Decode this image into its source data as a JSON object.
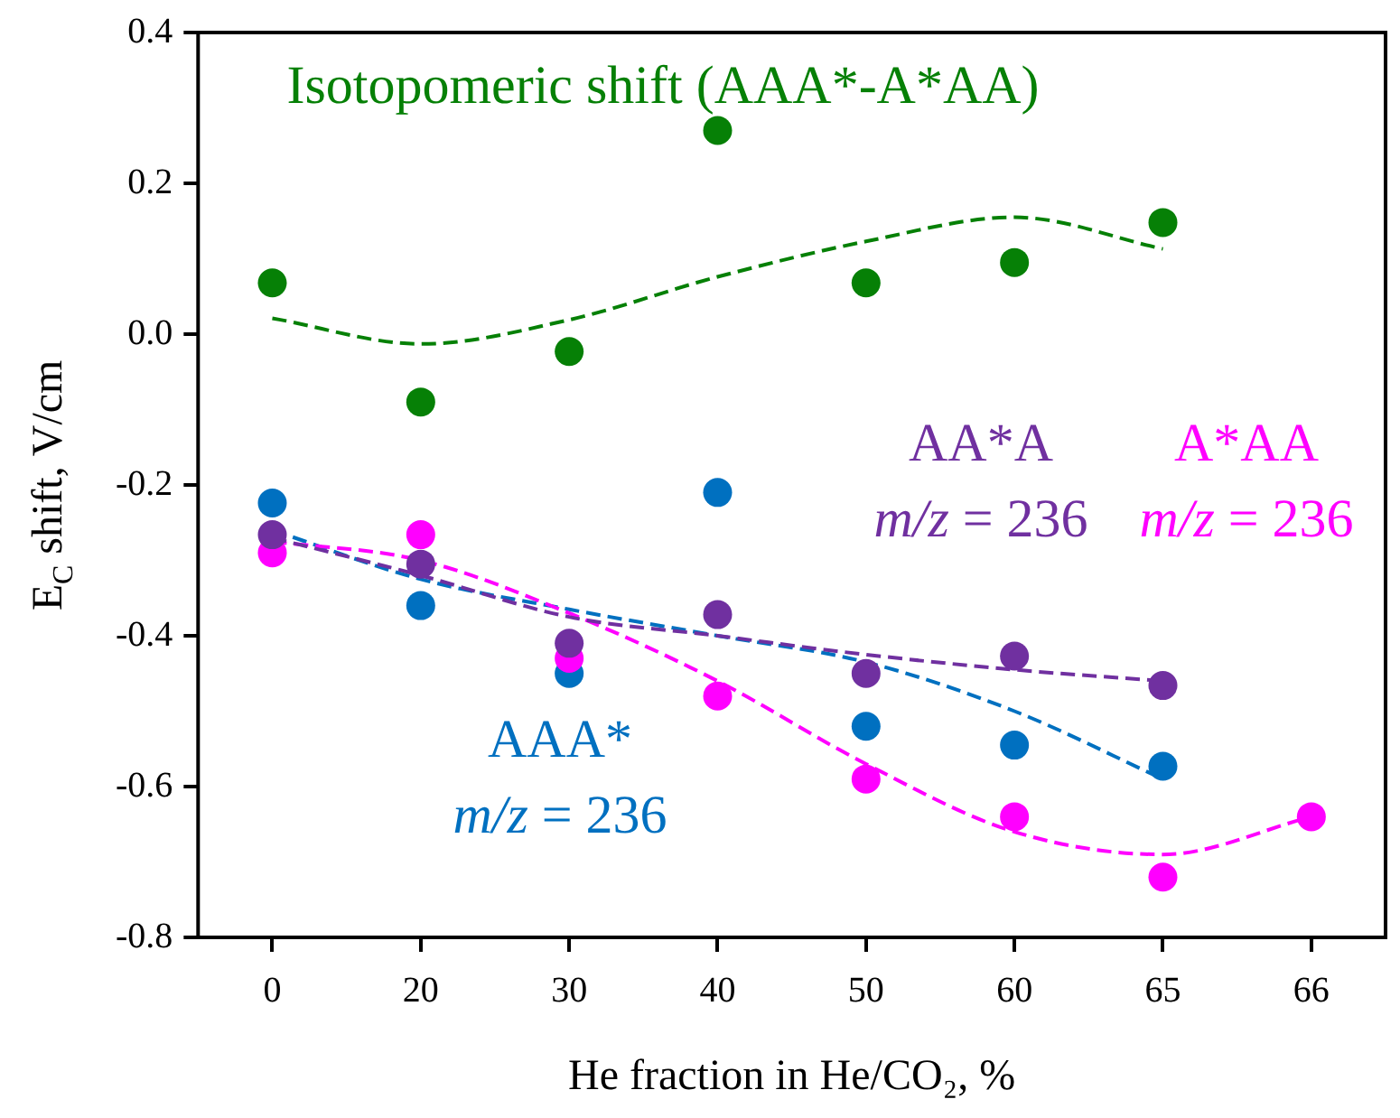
{
  "chart_data": {
    "type": "line",
    "xlabel": "He fraction in He/CO₂, %",
    "ylabel": "E$_{C}$ shift, V/cm",
    "categories": [
      "0",
      "20",
      "30",
      "40",
      "50",
      "60",
      "65",
      "66"
    ],
    "ylim": [
      -0.8,
      0.4
    ],
    "yticks": [
      {
        "value": -0.8,
        "label": "-0.8"
      },
      {
        "value": -0.6,
        "label": "-0.6"
      },
      {
        "value": -0.4,
        "label": "-0.4"
      },
      {
        "value": -0.2,
        "label": "-0.2"
      },
      {
        "value": 0,
        "label": "0.0"
      },
      0.2,
      0.4
    ],
    "grid": false,
    "legend": false,
    "series": [
      {
        "name": "Isotopomeric shift (AAA*-A*AA)",
        "type": "scatter",
        "marker": "circle",
        "color": "#068006",
        "values": [
          0.068,
          -0.09,
          -0.023,
          0.27,
          0.068,
          0.095,
          0.148,
          null
        ]
      },
      {
        "type": "line",
        "line_style": "dashed",
        "marker": "none",
        "color": "#068006",
        "values": [
          0.021,
          -0.013,
          0.019,
          0.076,
          0.123,
          0.155,
          0.113,
          null
        ]
      },
      {
        "name": "AA*A",
        "type": "scatter",
        "marker": "circle",
        "color": "#7030a0",
        "values": [
          -0.266,
          -0.305,
          -0.41,
          -0.372,
          -0.45,
          -0.427,
          -0.466,
          null
        ]
      },
      {
        "type": "line",
        "line_style": "dashed",
        "marker": "none",
        "color": "#7030a0",
        "values": [
          -0.27,
          -0.32,
          -0.375,
          -0.4,
          -0.425,
          -0.445,
          -0.46,
          null
        ]
      },
      {
        "name": "A*AA",
        "type": "scatter",
        "marker": "circle",
        "color": "#ff00ff",
        "values": [
          -0.29,
          -0.266,
          -0.43,
          -0.48,
          -0.59,
          -0.64,
          -0.72,
          -0.64
        ]
      },
      {
        "type": "line",
        "line_style": "dashed",
        "marker": "none",
        "color": "#ff00ff",
        "values": [
          -0.275,
          -0.3,
          -0.37,
          -0.46,
          -0.57,
          -0.66,
          -0.69,
          -0.64
        ]
      },
      {
        "name": "AAA*",
        "type": "scatter",
        "marker": "circle",
        "color": "#0070c0",
        "values": [
          -0.224,
          -0.36,
          -0.45,
          -0.21,
          -0.52,
          -0.545,
          -0.573,
          null
        ]
      },
      {
        "type": "line",
        "line_style": "dashed",
        "marker": "none",
        "color": "#0070c0",
        "values": [
          -0.26,
          -0.325,
          -0.365,
          -0.4,
          -0.435,
          -0.5,
          -0.59,
          null
        ]
      }
    ],
    "annotations": [
      "m/z = 236",
      "m/z = 236",
      "m/z = 236"
    ]
  }
}
